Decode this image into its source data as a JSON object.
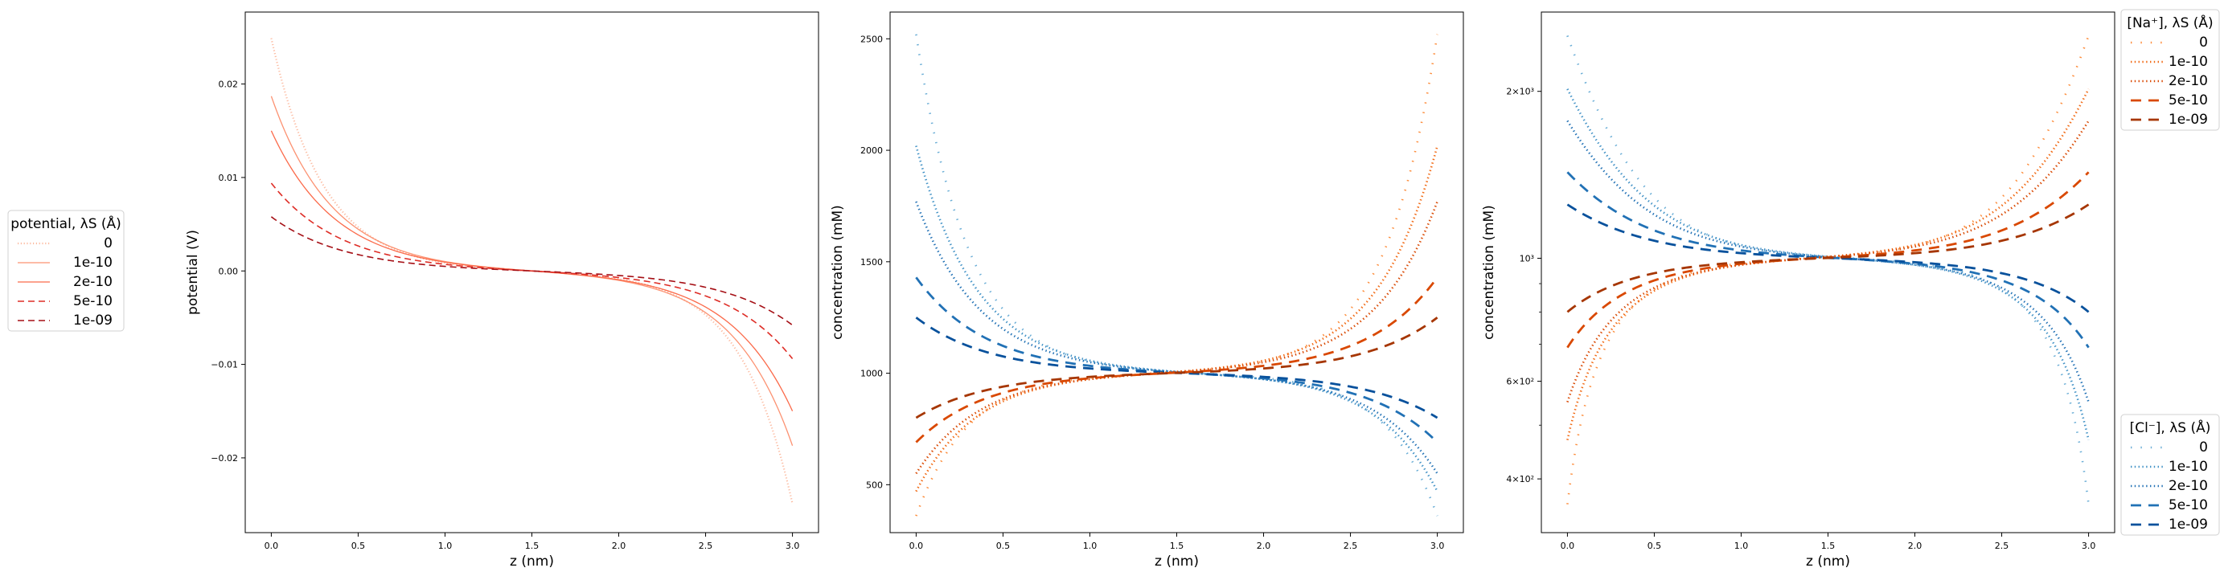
{
  "chart_data": [
    {
      "type": "line",
      "title": "",
      "xlabel": "z (nm)",
      "ylabel": "potential (V)",
      "xlim": [
        -0.15,
        3.15
      ],
      "ylim": [
        -0.028,
        0.0277
      ],
      "yscale": "linear",
      "grid": false,
      "xticks": [
        {
          "value": 0.0,
          "label": "0.0"
        },
        {
          "value": 0.5,
          "label": "0.5"
        },
        {
          "value": 1.0,
          "label": "1.0"
        },
        {
          "value": 1.5,
          "label": "1.5"
        },
        {
          "value": 2.0,
          "label": "2.0"
        },
        {
          "value": 2.5,
          "label": "2.5"
        },
        {
          "value": 3.0,
          "label": "3.0"
        }
      ],
      "yticks": [
        {
          "value": 0.02,
          "label": "0.02"
        },
        {
          "value": 0.01,
          "label": "0.01"
        },
        {
          "value": 0.0,
          "label": "0.00"
        },
        {
          "value": -0.01,
          "label": "−0.01"
        },
        {
          "value": -0.02,
          "label": "−0.02"
        }
      ],
      "legend": {
        "title": "potential, λS (Å)",
        "placement": "outside-left",
        "entries": [
          "0",
          "1e-10",
          "2e-10",
          "5e-10",
          "1e-09"
        ]
      },
      "series": [
        {
          "name": "0",
          "style": "dotted",
          "color": "#fcbba1",
          "end_value": 0.0249,
          "decay_length_nm": 0.3,
          "shape": "antisymmetric"
        },
        {
          "name": "1e-10",
          "style": "solid",
          "color": "#fc9272",
          "end_value": 0.0187,
          "decay_length_nm": 0.35,
          "shape": "antisymmetric"
        },
        {
          "name": "2e-10",
          "style": "solid",
          "color": "#fb6a4a",
          "end_value": 0.015,
          "decay_length_nm": 0.37,
          "shape": "antisymmetric"
        },
        {
          "name": "5e-10",
          "style": "dashed",
          "color": "#de2d26",
          "end_value": 0.0094,
          "decay_length_nm": 0.4,
          "shape": "antisymmetric"
        },
        {
          "name": "1e-09",
          "style": "dashed",
          "color": "#a50f15",
          "end_value": 0.0058,
          "decay_length_nm": 0.42,
          "shape": "antisymmetric"
        }
      ]
    },
    {
      "type": "line",
      "title": "",
      "xlabel": "z (nm)",
      "ylabel": "concentration (mM)",
      "xlim": [
        -0.15,
        3.15
      ],
      "ylim": [
        285,
        2620
      ],
      "yscale": "linear",
      "grid": false,
      "xticks": [
        {
          "value": 0.0,
          "label": "0.0"
        },
        {
          "value": 0.5,
          "label": "0.5"
        },
        {
          "value": 1.0,
          "label": "1.0"
        },
        {
          "value": 1.5,
          "label": "1.5"
        },
        {
          "value": 2.0,
          "label": "2.0"
        },
        {
          "value": 2.5,
          "label": "2.5"
        },
        {
          "value": 3.0,
          "label": "3.0"
        }
      ],
      "yticks": [
        {
          "value": 2500,
          "label": "2500"
        },
        {
          "value": 2000,
          "label": "2000"
        },
        {
          "value": 1500,
          "label": "1500"
        },
        {
          "value": 1000,
          "label": "1000"
        },
        {
          "value": 500,
          "label": "500"
        }
      ],
      "series": [
        {
          "name": "Cl 0",
          "ion": "Cl",
          "style": "sparse",
          "color": "#6baed6",
          "left_value": 2520,
          "right_value": 360,
          "decay_length_nm": 0.3
        },
        {
          "name": "Cl 1e-10",
          "ion": "Cl",
          "style": "dotted",
          "color": "#4292c6",
          "left_value": 2020,
          "right_value": 470,
          "decay_length_nm": 0.35
        },
        {
          "name": "Cl 2e-10",
          "ion": "Cl",
          "style": "dotted",
          "color": "#2171b5",
          "left_value": 1770,
          "right_value": 550,
          "decay_length_nm": 0.37
        },
        {
          "name": "Cl 5e-10",
          "ion": "Cl",
          "style": "dashed",
          "color": "#2171b5",
          "left_value": 1430,
          "right_value": 690,
          "decay_length_nm": 0.4
        },
        {
          "name": "Cl 1e-09",
          "ion": "Cl",
          "style": "dashed",
          "color": "#08519c",
          "left_value": 1250,
          "right_value": 800,
          "decay_length_nm": 0.42
        },
        {
          "name": "Na 0",
          "ion": "Na",
          "style": "sparse",
          "color": "#fd8d3c",
          "left_value": 360,
          "right_value": 2520,
          "decay_length_nm": 0.3
        },
        {
          "name": "Na 1e-10",
          "ion": "Na",
          "style": "dotted",
          "color": "#f16913",
          "left_value": 470,
          "right_value": 2020,
          "decay_length_nm": 0.35
        },
        {
          "name": "Na 2e-10",
          "ion": "Na",
          "style": "dotted",
          "color": "#d94801",
          "left_value": 550,
          "right_value": 1770,
          "decay_length_nm": 0.37
        },
        {
          "name": "Na 5e-10",
          "ion": "Na",
          "style": "dashed",
          "color": "#d94801",
          "left_value": 690,
          "right_value": 1430,
          "decay_length_nm": 0.4
        },
        {
          "name": "Na 1e-09",
          "ion": "Na",
          "style": "dashed",
          "color": "#a63603",
          "left_value": 800,
          "right_value": 1250,
          "decay_length_nm": 0.42
        }
      ]
    },
    {
      "type": "line",
      "title": "",
      "xlabel": "z (nm)",
      "ylabel": "concentration (mM)",
      "xlim": [
        -0.15,
        3.15
      ],
      "ylim": [
        320,
        2780
      ],
      "yscale": "log",
      "grid": false,
      "xticks": [
        {
          "value": 0.0,
          "label": "0.0"
        },
        {
          "value": 0.5,
          "label": "0.5"
        },
        {
          "value": 1.0,
          "label": "1.0"
        },
        {
          "value": 1.5,
          "label": "1.5"
        },
        {
          "value": 2.0,
          "label": "2.0"
        },
        {
          "value": 2.5,
          "label": "2.5"
        },
        {
          "value": 3.0,
          "label": "3.0"
        }
      ],
      "yticks": [
        {
          "value": 2000,
          "label": "2×10³"
        },
        {
          "value": 1000,
          "label": "10³"
        },
        {
          "value": 600,
          "label": "6×10²"
        },
        {
          "value": 400,
          "label": "4×10²"
        }
      ],
      "legends": [
        {
          "title": "[Na⁺], λS (Å)",
          "placement": "outside-top-right",
          "ion": "Na",
          "entries": [
            "0",
            "1e-10",
            "2e-10",
            "5e-10",
            "1e-09"
          ]
        },
        {
          "title": "[Cl⁻], λS (Å)",
          "placement": "outside-bottom-right",
          "ion": "Cl",
          "entries": [
            "0",
            "1e-10",
            "2e-10",
            "5e-10",
            "1e-09"
          ]
        }
      ],
      "series": [
        {
          "name": "Cl 0",
          "ion": "Cl",
          "style": "sparse",
          "color": "#6baed6",
          "left_value": 2520,
          "right_value": 360,
          "decay_length_nm": 0.3
        },
        {
          "name": "Cl 1e-10",
          "ion": "Cl",
          "style": "dotted",
          "color": "#4292c6",
          "left_value": 2020,
          "right_value": 470,
          "decay_length_nm": 0.35
        },
        {
          "name": "Cl 2e-10",
          "ion": "Cl",
          "style": "dotted",
          "color": "#2171b5",
          "left_value": 1770,
          "right_value": 550,
          "decay_length_nm": 0.37
        },
        {
          "name": "Cl 5e-10",
          "ion": "Cl",
          "style": "dashed",
          "color": "#2171b5",
          "left_value": 1430,
          "right_value": 690,
          "decay_length_nm": 0.4
        },
        {
          "name": "Cl 1e-09",
          "ion": "Cl",
          "style": "dashed",
          "color": "#08519c",
          "left_value": 1250,
          "right_value": 800,
          "decay_length_nm": 0.42
        },
        {
          "name": "Na 0",
          "ion": "Na",
          "style": "sparse",
          "color": "#fd8d3c",
          "left_value": 360,
          "right_value": 2520,
          "decay_length_nm": 0.3
        },
        {
          "name": "Na 1e-10",
          "ion": "Na",
          "style": "dotted",
          "color": "#f16913",
          "left_value": 470,
          "right_value": 2020,
          "decay_length_nm": 0.35
        },
        {
          "name": "Na 2e-10",
          "ion": "Na",
          "style": "dotted",
          "color": "#d94801",
          "left_value": 550,
          "right_value": 1770,
          "decay_length_nm": 0.37
        },
        {
          "name": "Na 5e-10",
          "ion": "Na",
          "style": "dashed",
          "color": "#d94801",
          "left_value": 690,
          "right_value": 1430,
          "decay_length_nm": 0.4
        },
        {
          "name": "Na 1e-09",
          "ion": "Na",
          "style": "dashed",
          "color": "#a63603",
          "left_value": 800,
          "right_value": 1250,
          "decay_length_nm": 0.42
        }
      ]
    }
  ]
}
